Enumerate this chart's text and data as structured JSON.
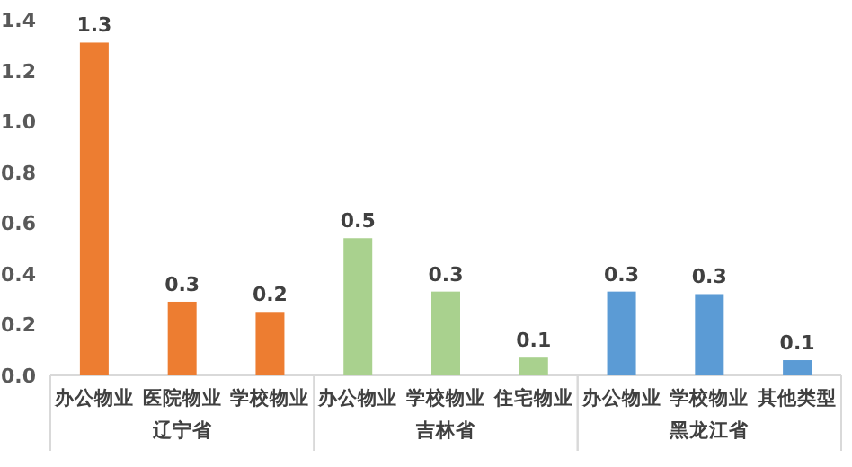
{
  "chart_data": {
    "type": "bar",
    "categories": [
      "办公物业",
      "医院物业",
      "学校物业",
      "办公物业",
      "学校物业",
      "住宅物业",
      "办公物业",
      "学校物业",
      "其他类型"
    ],
    "series": [
      {
        "name": "辽宁省",
        "color": "#ed7d31",
        "values": [
          1.31,
          0.29,
          0.25,
          null,
          null,
          null,
          null,
          null,
          null
        ],
        "value_labels": [
          "1.3",
          "0.3",
          "0.2",
          null,
          null,
          null,
          null,
          null,
          null
        ]
      },
      {
        "name": "吉林省",
        "color": "#a9d18e",
        "values": [
          null,
          null,
          null,
          0.54,
          0.33,
          0.07,
          null,
          null,
          null
        ],
        "value_labels": [
          null,
          null,
          null,
          "0.5",
          "0.3",
          "0.1",
          null,
          null,
          null
        ]
      },
      {
        "name": "黑龙江省",
        "color": "#5b9bd5",
        "values": [
          null,
          null,
          null,
          null,
          null,
          null,
          0.33,
          0.32,
          0.06
        ],
        "value_labels": [
          null,
          null,
          null,
          null,
          null,
          null,
          "0.3",
          "0.3",
          "0.1"
        ]
      }
    ],
    "ylim": [
      0,
      1.4
    ],
    "yticks": [
      {
        "value": 0,
        "label": "0.0"
      },
      {
        "value": 0.2,
        "label": "0.2"
      },
      {
        "value": 0.4,
        "label": "0.4"
      },
      {
        "value": 0.6,
        "label": "0.6"
      },
      {
        "value": 0.8,
        "label": "0.8"
      },
      {
        "value": 1.0,
        "label": "1.0"
      },
      {
        "value": 1.2,
        "label": "1.2"
      },
      {
        "value": 1.4,
        "label": "1.4"
      }
    ],
    "grid": false
  }
}
